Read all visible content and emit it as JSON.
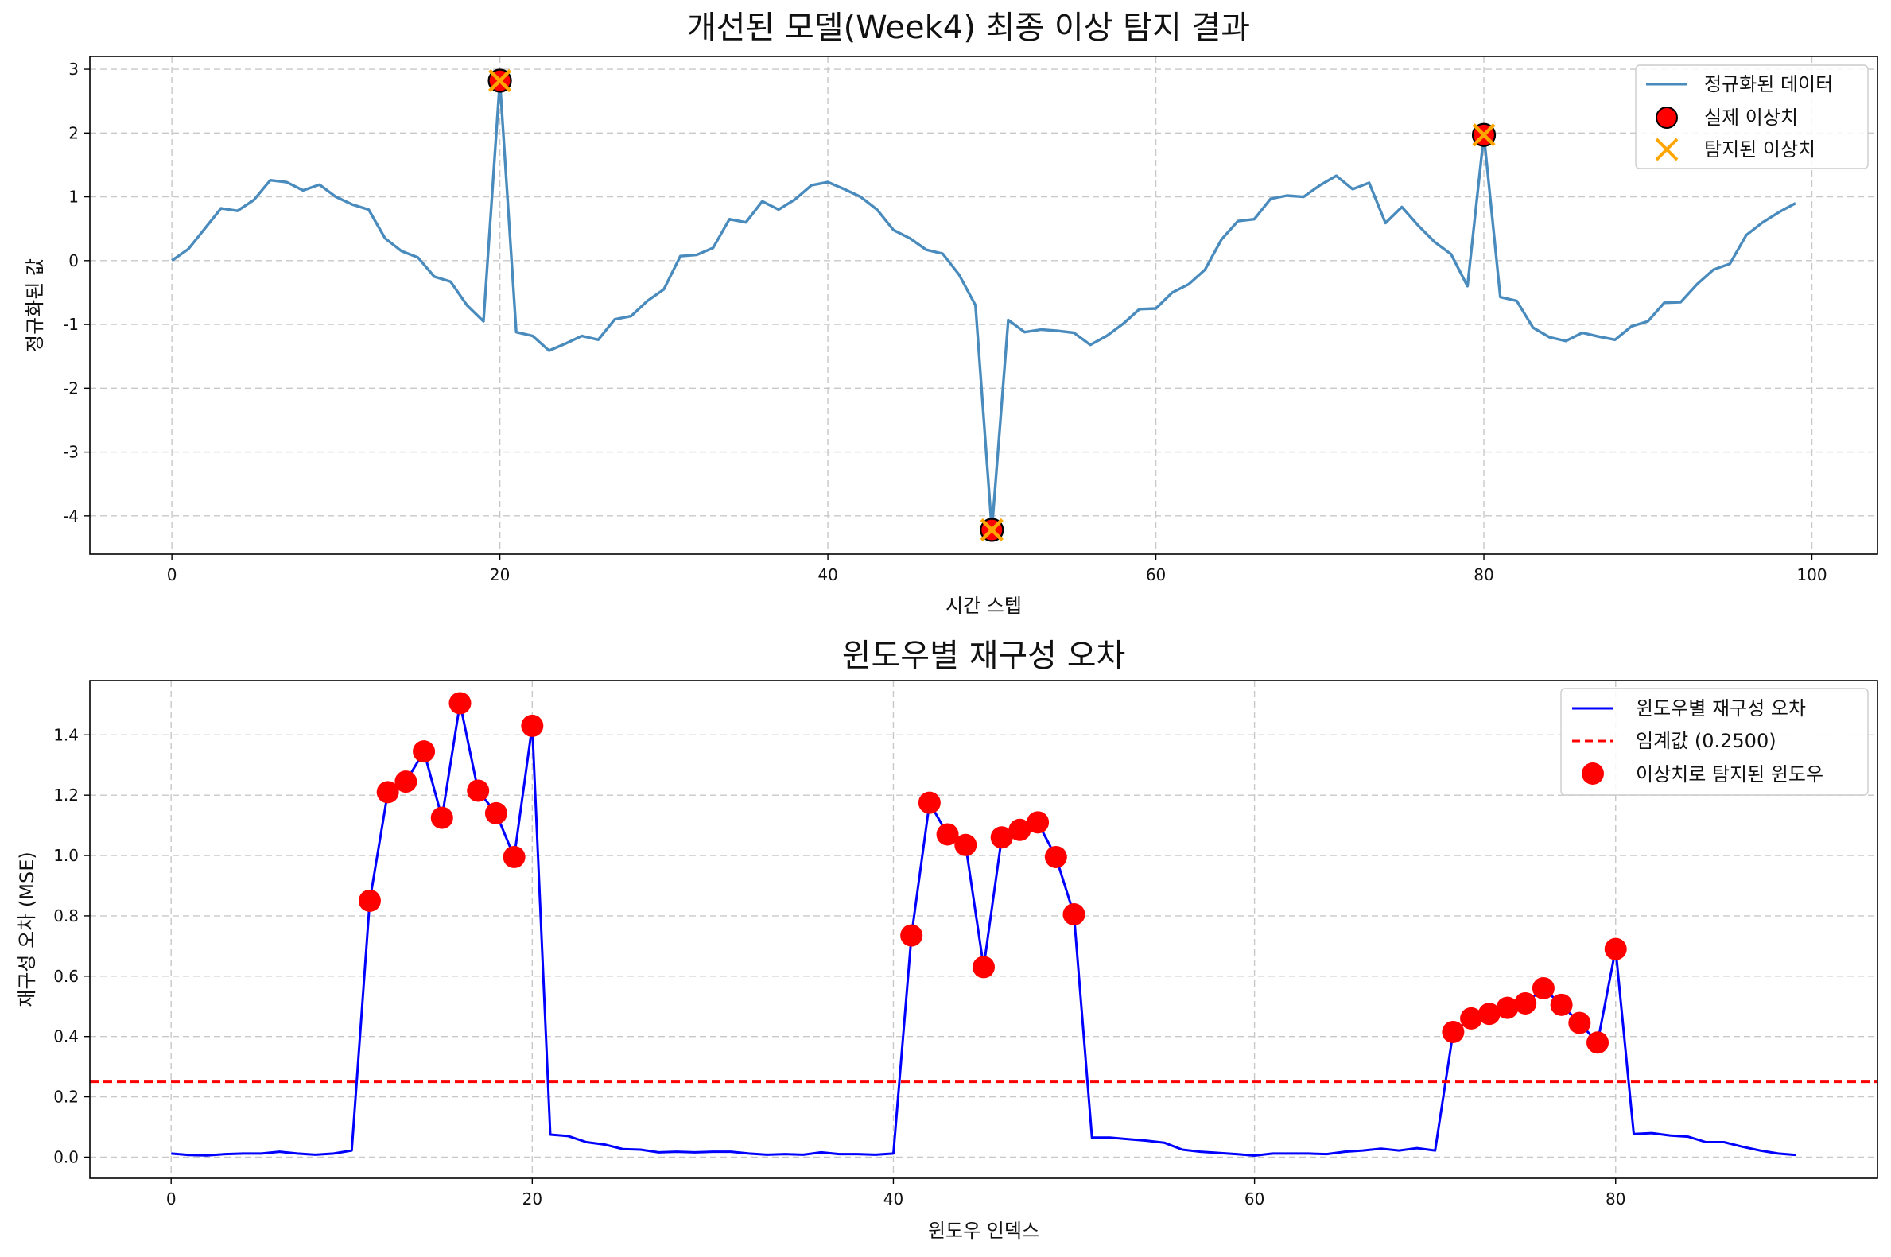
{
  "chart_data": [
    {
      "type": "line",
      "title": "개선된 모델(Week4) 최종 이상 탐지 결과",
      "xlabel": "시간 스텝",
      "ylabel": "정규화된 값",
      "xlim": [
        -5,
        104
      ],
      "ylim": [
        -4.6,
        3.2
      ],
      "xticks": [
        0,
        20,
        40,
        60,
        80,
        100
      ],
      "yticks": [
        3,
        2,
        1,
        0,
        -1,
        -2,
        -3,
        -4
      ],
      "grid": true,
      "legend_position": "top-right",
      "colors": {
        "line": "#4a8bbd",
        "actual": "#ff0000",
        "detected": "#ffa500"
      },
      "series": [
        {
          "name": "정규화된 데이터",
          "kind": "line",
          "x": [
            0,
            1,
            2,
            3,
            4,
            5,
            6,
            7,
            8,
            9,
            10,
            11,
            12,
            13,
            14,
            15,
            16,
            17,
            18,
            19,
            20,
            21,
            22,
            23,
            24,
            25,
            26,
            27,
            28,
            29,
            30,
            31,
            32,
            33,
            34,
            35,
            36,
            37,
            38,
            39,
            40,
            41,
            42,
            43,
            44,
            45,
            46,
            47,
            48,
            49,
            50,
            51,
            52,
            53,
            54,
            55,
            56,
            57,
            58,
            59,
            60,
            61,
            62,
            63,
            64,
            65,
            66,
            67,
            68,
            69,
            70,
            71,
            72,
            73,
            74,
            75,
            76,
            77,
            78,
            79,
            80,
            81,
            82,
            83,
            84,
            85,
            86,
            87,
            88,
            89,
            90,
            91,
            92,
            93,
            94,
            95,
            96,
            97,
            98,
            99
          ],
          "values": [
            0.0,
            0.18,
            0.5,
            0.82,
            0.78,
            0.95,
            1.26,
            1.23,
            1.1,
            1.19,
            1.0,
            0.88,
            0.8,
            0.35,
            0.15,
            0.05,
            -0.25,
            -0.33,
            -0.7,
            -0.95,
            2.82,
            -1.12,
            -1.18,
            -1.41,
            -1.3,
            -1.18,
            -1.24,
            -0.92,
            -0.87,
            -0.63,
            -0.45,
            0.07,
            0.09,
            0.2,
            0.65,
            0.6,
            0.93,
            0.8,
            0.96,
            1.18,
            1.23,
            1.12,
            1.0,
            0.8,
            0.48,
            0.35,
            0.17,
            0.11,
            -0.22,
            -0.7,
            -4.22,
            -0.93,
            -1.12,
            -1.08,
            -1.1,
            -1.13,
            -1.32,
            -1.18,
            -0.99,
            -0.76,
            -0.75,
            -0.5,
            -0.37,
            -0.14,
            0.33,
            0.62,
            0.65,
            0.97,
            1.02,
            1.0,
            1.18,
            1.33,
            1.12,
            1.22,
            0.59,
            0.84,
            0.55,
            0.29,
            0.1,
            -0.4,
            1.97,
            -0.57,
            -0.63,
            -1.05,
            -1.2,
            -1.26,
            -1.13,
            -1.19,
            -1.24,
            -1.03,
            -0.95,
            -0.66,
            -0.65,
            -0.37,
            -0.14,
            -0.05,
            0.4,
            0.6,
            0.76,
            0.9
          ]
        },
        {
          "name": "실제 이상치",
          "kind": "marker-circle",
          "x": [
            20,
            50,
            80
          ],
          "values": [
            2.82,
            -4.22,
            1.97
          ]
        },
        {
          "name": "탐지된 이상치",
          "kind": "marker-x",
          "x": [
            20,
            50,
            80
          ],
          "values": [
            2.82,
            -4.22,
            1.97
          ]
        }
      ]
    },
    {
      "type": "line",
      "title": "윈도우별 재구성 오차",
      "xlabel": "윈도우 인덱스",
      "ylabel": "재구성 오차 (MSE)",
      "xlim": [
        -4.5,
        94.5
      ],
      "ylim": [
        -0.07,
        1.58
      ],
      "xticks": [
        0,
        20,
        40,
        60,
        80
      ],
      "yticks": [
        1.4,
        1.2,
        1.0,
        0.8,
        0.6,
        0.4,
        0.2,
        0.0
      ],
      "grid": true,
      "legend_position": "top-right",
      "colors": {
        "line": "#0000ff",
        "threshold": "#ff0000",
        "points": "#ff0000"
      },
      "series": [
        {
          "name": "윈도우별 재구성 오차",
          "kind": "line",
          "x": [
            0,
            1,
            2,
            3,
            4,
            5,
            6,
            7,
            8,
            9,
            10,
            11,
            12,
            13,
            14,
            15,
            16,
            17,
            18,
            19,
            20,
            21,
            22,
            23,
            24,
            25,
            26,
            27,
            28,
            29,
            30,
            31,
            32,
            33,
            34,
            35,
            36,
            37,
            38,
            39,
            40,
            41,
            42,
            43,
            44,
            45,
            46,
            47,
            48,
            49,
            50,
            51,
            52,
            53,
            54,
            55,
            56,
            57,
            58,
            59,
            60,
            61,
            62,
            63,
            64,
            65,
            66,
            67,
            68,
            69,
            70,
            71,
            72,
            73,
            74,
            75,
            76,
            77,
            78,
            79,
            80,
            81,
            82,
            83,
            84,
            85,
            86,
            87,
            88,
            89,
            90
          ],
          "values": [
            0.012,
            0.007,
            0.006,
            0.01,
            0.012,
            0.012,
            0.018,
            0.012,
            0.008,
            0.012,
            0.022,
            0.85,
            1.21,
            1.245,
            1.345,
            1.125,
            1.505,
            1.215,
            1.14,
            0.995,
            1.43,
            0.075,
            0.07,
            0.05,
            0.042,
            0.027,
            0.025,
            0.016,
            0.018,
            0.016,
            0.018,
            0.018,
            0.012,
            0.008,
            0.01,
            0.008,
            0.016,
            0.01,
            0.01,
            0.008,
            0.012,
            0.735,
            1.175,
            1.07,
            1.035,
            0.63,
            1.06,
            1.085,
            1.11,
            0.995,
            0.805,
            0.065,
            0.065,
            0.06,
            0.055,
            0.048,
            0.025,
            0.018,
            0.014,
            0.01,
            0.005,
            0.012,
            0.012,
            0.012,
            0.01,
            0.018,
            0.022,
            0.028,
            0.022,
            0.03,
            0.022,
            0.415,
            0.46,
            0.475,
            0.495,
            0.51,
            0.56,
            0.505,
            0.445,
            0.38,
            0.69,
            0.077,
            0.08,
            0.072,
            0.068,
            0.05,
            0.05,
            0.035,
            0.022,
            0.012,
            0.007
          ]
        },
        {
          "name": "임계값 (0.2500)",
          "kind": "hline",
          "value": 0.25
        },
        {
          "name": "이상치로 탐지된 윈도우",
          "kind": "marker-dot",
          "x": [
            11,
            12,
            13,
            14,
            15,
            16,
            17,
            18,
            19,
            20,
            41,
            42,
            43,
            44,
            45,
            46,
            47,
            48,
            49,
            50,
            71,
            72,
            73,
            74,
            75,
            76,
            77,
            78,
            79,
            80
          ],
          "values": [
            0.85,
            1.21,
            1.245,
            1.345,
            1.125,
            1.505,
            1.215,
            1.14,
            0.995,
            1.43,
            0.735,
            1.175,
            1.07,
            1.035,
            0.63,
            1.06,
            1.085,
            1.11,
            0.995,
            0.805,
            0.415,
            0.46,
            0.475,
            0.495,
            0.51,
            0.56,
            0.505,
            0.445,
            0.38,
            0.69
          ]
        }
      ]
    }
  ]
}
